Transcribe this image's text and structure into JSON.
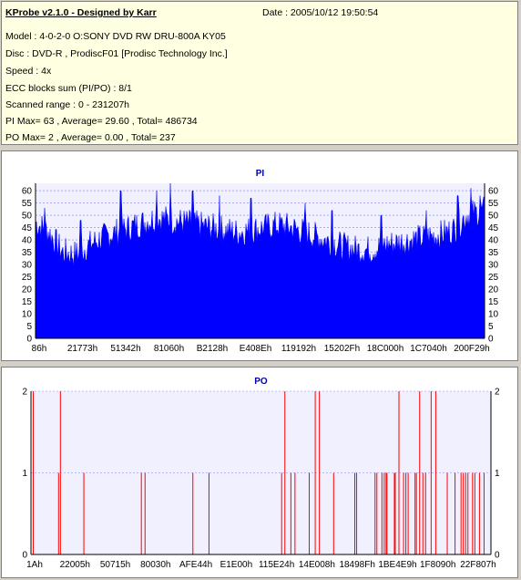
{
  "header": {
    "app_title": "KProbe v2.1.0 - Designed by Karr",
    "date": "Date : 2005/10/12 19:50:54",
    "model": "Model : 4-0-2-0 O:SONY    DVD RW DRU-800A  KY05",
    "disc": "Disc : DVD-R , ProdiscF01 [Prodisc Technology Inc.]",
    "speed": "Speed : 4x",
    "ecc": "ECC blocks sum (PI/PO) : 8/1",
    "range": "Scanned range : 0 - 231207h",
    "pi_summary": "PI Max= 63 , Average= 29.60 , Total= 486734",
    "po_summary": "PO Max= 2 , Average= 0.00 , Total= 237"
  },
  "chart_data": [
    {
      "type": "area",
      "title": "PI",
      "xlabel": "",
      "ylabel": "",
      "ylim": [
        0,
        63
      ],
      "yticks": [
        0,
        5,
        10,
        15,
        20,
        25,
        30,
        35,
        40,
        45,
        50,
        55,
        60
      ],
      "xtick_labels": [
        "86h",
        "21773h",
        "51342h",
        "81060h",
        "B2128h",
        "E408Eh",
        "119192h",
        "15202Fh",
        "18C000h",
        "1C7040h",
        "200F29h"
      ],
      "grid": "dashed horizontal every 5",
      "color": "#0000ff",
      "x": [
        0.0,
        0.03,
        0.06,
        0.09,
        0.12,
        0.15,
        0.18,
        0.21,
        0.24,
        0.27,
        0.3,
        0.33,
        0.36,
        0.39,
        0.42,
        0.45,
        0.48,
        0.51,
        0.54,
        0.57,
        0.6,
        0.63,
        0.66,
        0.69,
        0.72,
        0.75,
        0.78,
        0.81,
        0.84,
        0.87,
        0.9,
        0.93,
        0.96,
        1.0
      ],
      "values": [
        47,
        43,
        35,
        34,
        38,
        41,
        43,
        45,
        47,
        49,
        48,
        47,
        46,
        45,
        44,
        43,
        44,
        45,
        46,
        45,
        43,
        41,
        39,
        37,
        36,
        36,
        38,
        39,
        40,
        41,
        42,
        44,
        50,
        52
      ],
      "peaks": [
        {
          "x": 0.02,
          "value": 53
        },
        {
          "x": 0.1,
          "value": 48
        },
        {
          "x": 0.19,
          "value": 60
        },
        {
          "x": 0.27,
          "value": 60
        },
        {
          "x": 0.3,
          "value": 63
        },
        {
          "x": 0.35,
          "value": 60
        },
        {
          "x": 0.41,
          "value": 58
        },
        {
          "x": 0.48,
          "value": 57
        },
        {
          "x": 0.6,
          "value": 55
        },
        {
          "x": 0.66,
          "value": 52
        },
        {
          "x": 0.77,
          "value": 50
        },
        {
          "x": 0.87,
          "value": 52
        },
        {
          "x": 0.94,
          "value": 58
        },
        {
          "x": 0.97,
          "value": 61
        },
        {
          "x": 0.99,
          "value": 58
        }
      ]
    },
    {
      "type": "bar",
      "title": "PO",
      "xlabel": "",
      "ylabel": "",
      "ylim": [
        0,
        2
      ],
      "yticks": [
        0,
        1,
        2
      ],
      "xtick_labels": [
        "1Ah",
        "22005h",
        "50715h",
        "80030h",
        "AFE44h",
        "E1E00h",
        "115E24h",
        "14E008h",
        "18498Fh",
        "1BE4E9h",
        "1F8090h",
        "22F807h"
      ],
      "grid": "dashed horizontal at 1",
      "color": "#ff0000",
      "x": [
        0.005,
        0.06,
        0.064,
        0.115,
        0.24,
        0.248,
        0.352,
        0.387,
        0.545,
        0.552,
        0.565,
        0.574,
        0.605,
        0.618,
        0.627,
        0.658,
        0.704,
        0.708,
        0.748,
        0.752,
        0.763,
        0.768,
        0.772,
        0.79,
        0.792,
        0.81,
        0.815,
        0.82,
        0.8,
        0.774,
        0.835,
        0.838,
        0.845,
        0.852,
        0.858,
        0.87,
        0.88,
        0.905,
        0.922,
        0.935,
        0.94,
        0.945,
        0.95,
        0.965,
        0.96,
        0.975,
        0.985
      ],
      "values": [
        2,
        1,
        2,
        1,
        1,
        1,
        1,
        1,
        1,
        2,
        1,
        1,
        1,
        2,
        2,
        1,
        1,
        1,
        1,
        1,
        1,
        1,
        1,
        1,
        1,
        1,
        1,
        1,
        2,
        1,
        1,
        1,
        2,
        1,
        1,
        2,
        2,
        1,
        1,
        1,
        1,
        1,
        1,
        1,
        1,
        1,
        1
      ]
    }
  ]
}
